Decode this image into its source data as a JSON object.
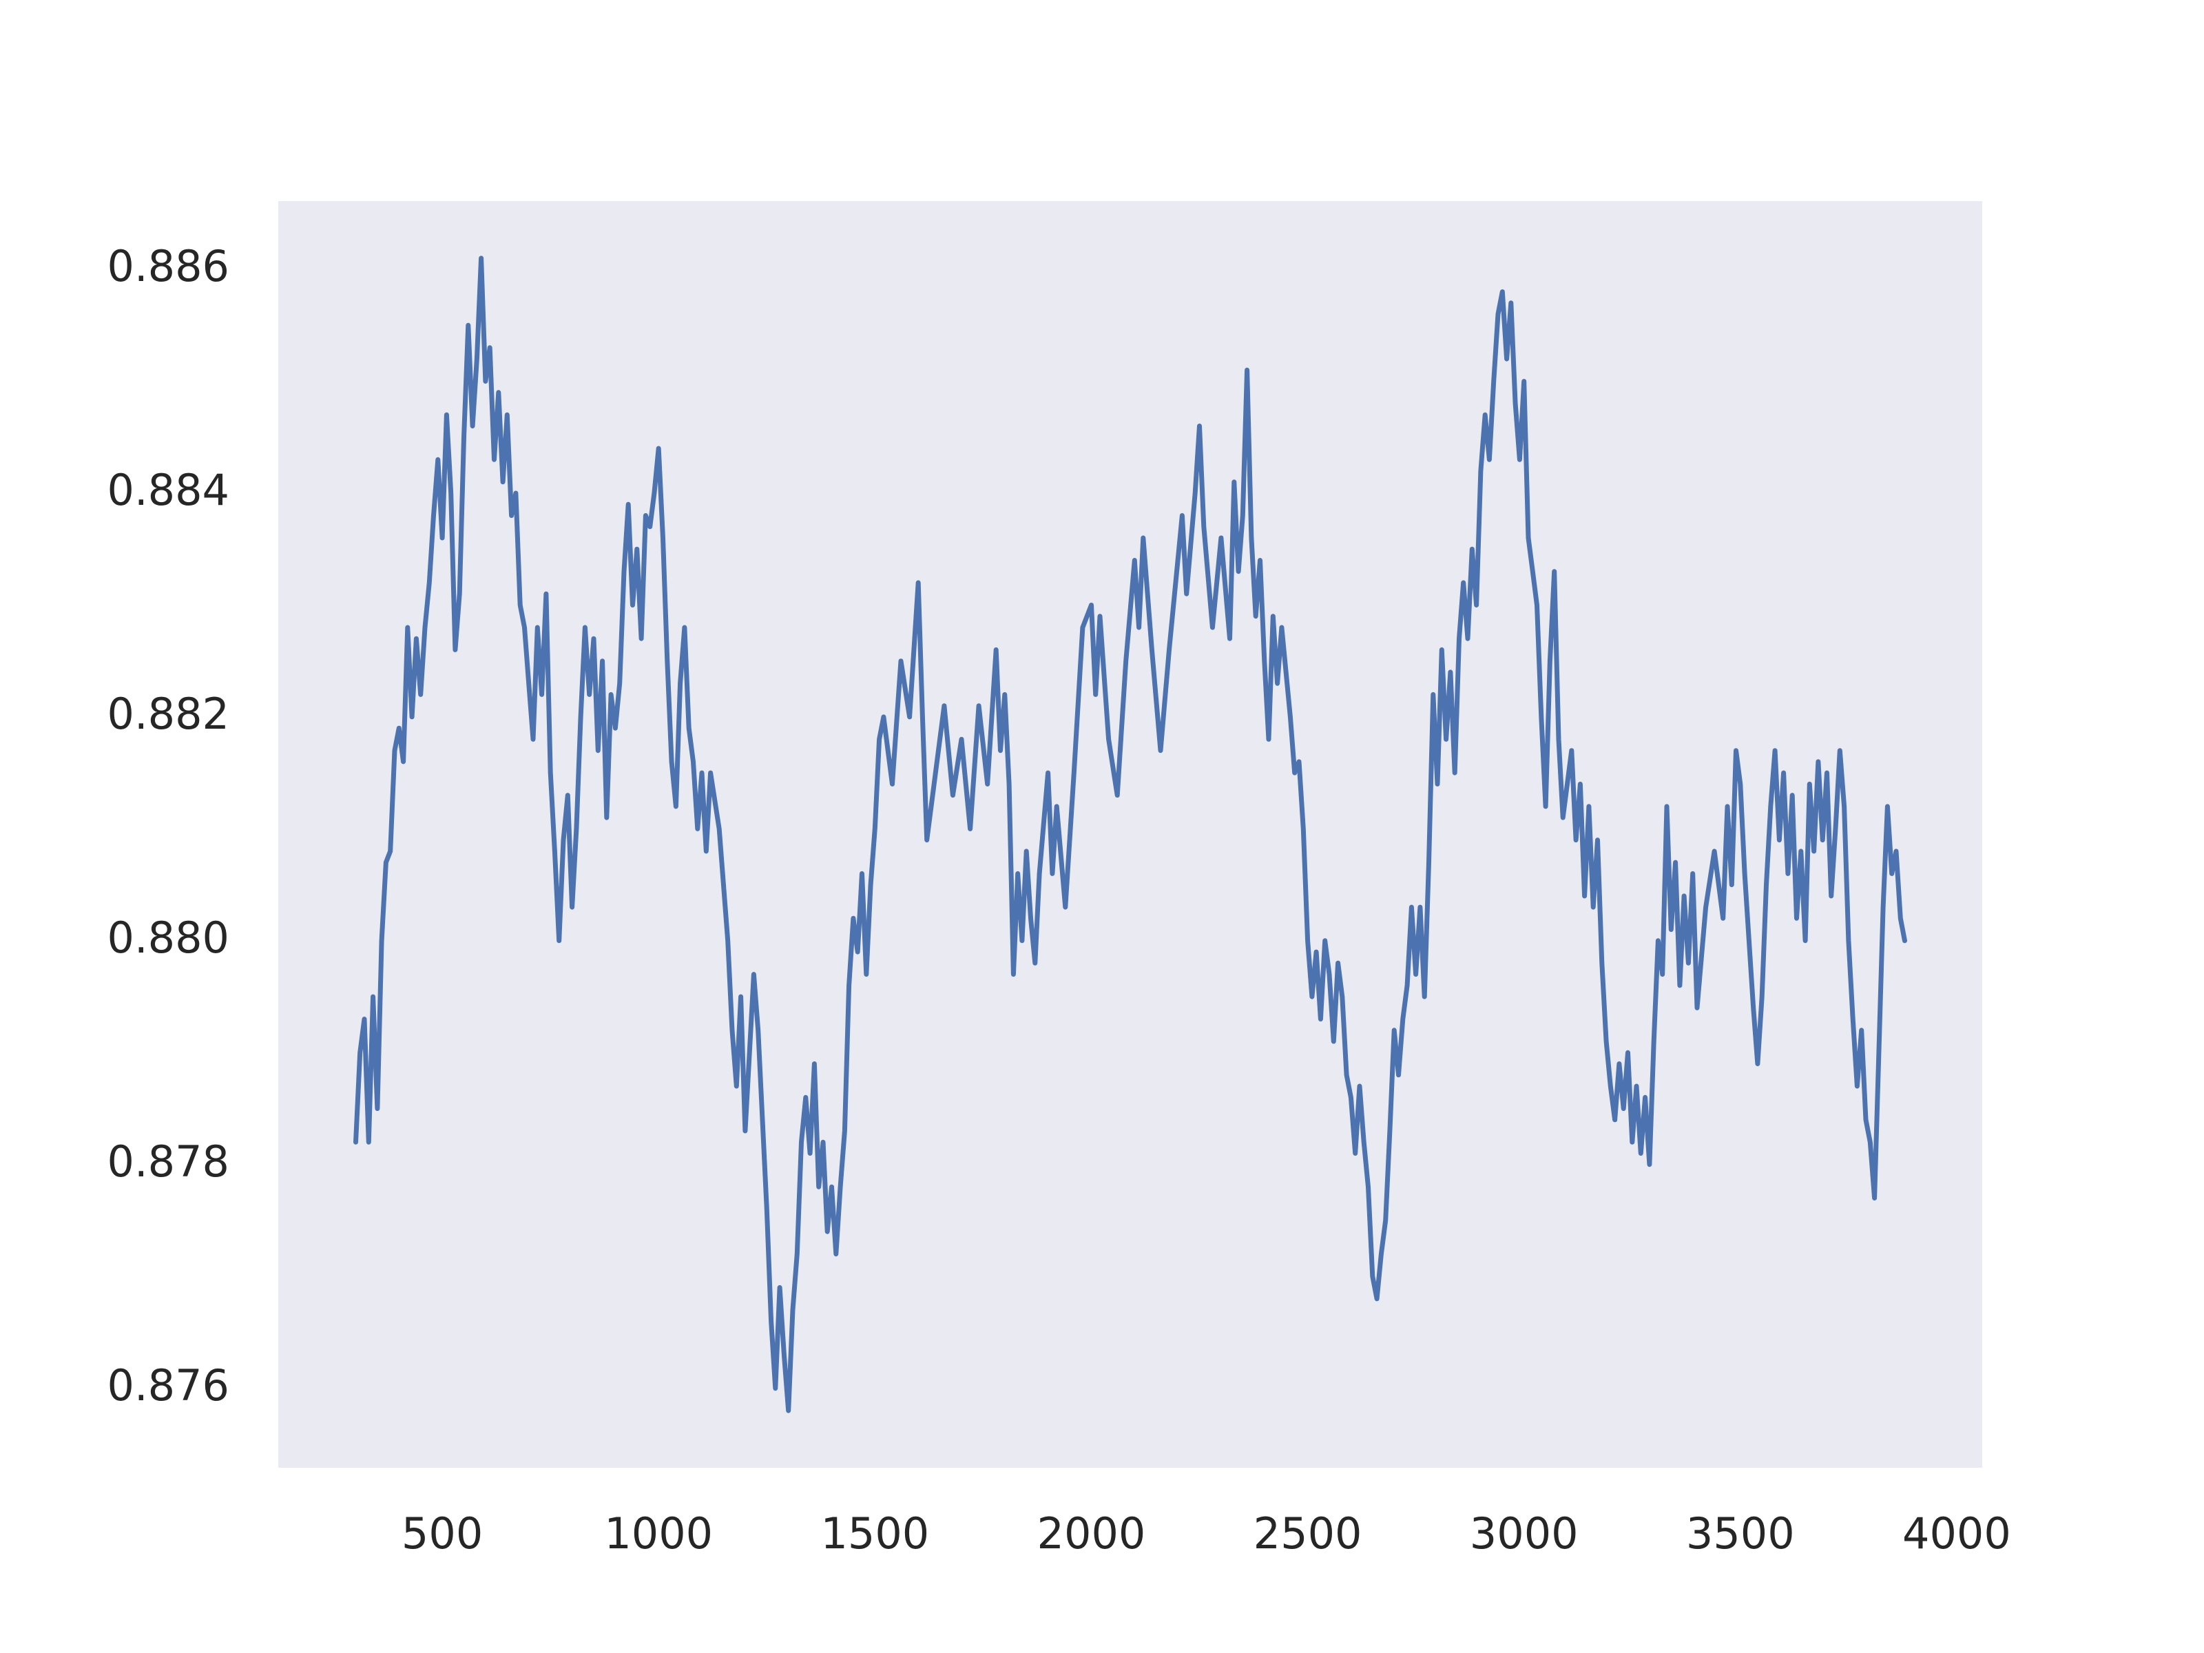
{
  "chart_data": {
    "type": "line",
    "x": [
      300,
      310,
      320,
      330,
      340,
      350,
      360,
      370,
      380,
      390,
      400,
      410,
      420,
      430,
      440,
      450,
      460,
      470,
      480,
      490,
      500,
      510,
      520,
      530,
      540,
      550,
      560,
      570,
      580,
      590,
      600,
      610,
      620,
      630,
      640,
      650,
      660,
      670,
      680,
      690,
      700,
      710,
      720,
      730,
      740,
      750,
      760,
      770,
      780,
      790,
      800,
      810,
      820,
      830,
      840,
      850,
      860,
      870,
      880,
      890,
      900,
      910,
      920,
      930,
      940,
      950,
      960,
      970,
      980,
      990,
      1000,
      1010,
      1020,
      1030,
      1040,
      1050,
      1060,
      1070,
      1080,
      1090,
      1100,
      1110,
      1120,
      1140,
      1160,
      1170,
      1180,
      1190,
      1200,
      1210,
      1220,
      1230,
      1240,
      1250,
      1260,
      1270,
      1280,
      1290,
      1300,
      1310,
      1320,
      1330,
      1340,
      1350,
      1360,
      1370,
      1380,
      1390,
      1400,
      1410,
      1420,
      1430,
      1440,
      1450,
      1460,
      1470,
      1480,
      1490,
      1500,
      1510,
      1520,
      1540,
      1560,
      1580,
      1600,
      1610,
      1620,
      1640,
      1660,
      1680,
      1700,
      1720,
      1740,
      1760,
      1780,
      1790,
      1800,
      1810,
      1820,
      1830,
      1840,
      1850,
      1860,
      1870,
      1880,
      1900,
      1910,
      1920,
      1940,
      1960,
      1980,
      2000,
      2010,
      2020,
      2040,
      2060,
      2080,
      2100,
      2110,
      2120,
      2140,
      2160,
      2180,
      2200,
      2210,
      2220,
      2240,
      2250,
      2260,
      2280,
      2300,
      2320,
      2330,
      2340,
      2350,
      2360,
      2370,
      2380,
      2390,
      2400,
      2410,
      2420,
      2430,
      2440,
      2460,
      2470,
      2480,
      2490,
      2500,
      2510,
      2520,
      2530,
      2540,
      2550,
      2560,
      2570,
      2580,
      2590,
      2600,
      2610,
      2620,
      2630,
      2640,
      2650,
      2660,
      2670,
      2680,
      2690,
      2700,
      2710,
      2720,
      2730,
      2740,
      2750,
      2760,
      2770,
      2780,
      2790,
      2800,
      2810,
      2820,
      2830,
      2840,
      2850,
      2860,
      2870,
      2880,
      2890,
      2900,
      2910,
      2920,
      2930,
      2940,
      2950,
      2960,
      2970,
      2980,
      2990,
      3000,
      3010,
      3020,
      3030,
      3040,
      3050,
      3060,
      3070,
      3080,
      3090,
      3100,
      3110,
      3120,
      3130,
      3140,
      3150,
      3160,
      3170,
      3180,
      3190,
      3200,
      3210,
      3220,
      3230,
      3240,
      3250,
      3260,
      3270,
      3280,
      3290,
      3300,
      3310,
      3320,
      3330,
      3340,
      3350,
      3360,
      3370,
      3380,
      3390,
      3400,
      3420,
      3440,
      3460,
      3470,
      3480,
      3490,
      3500,
      3510,
      3520,
      3530,
      3540,
      3550,
      3560,
      3570,
      3580,
      3590,
      3600,
      3610,
      3620,
      3630,
      3640,
      3650,
      3660,
      3670,
      3680,
      3690,
      3700,
      3710,
      3720,
      3730,
      3740,
      3750,
      3760,
      3770,
      3780,
      3790,
      3800,
      3810,
      3820,
      3830,
      3840,
      3850,
      3860,
      3870,
      3880
    ],
    "series": [
      {
        "color": "#4c72b0",
        "values": [
          0.8782,
          0.879,
          0.8793,
          0.8782,
          0.8795,
          0.8785,
          0.88,
          0.8807,
          0.8808,
          0.8817,
          0.8819,
          0.8816,
          0.8828,
          0.882,
          0.8827,
          0.8822,
          0.8828,
          0.8832,
          0.8838,
          0.8843,
          0.8836,
          0.8847,
          0.884,
          0.8826,
          0.8831,
          0.8845,
          0.8855,
          0.8846,
          0.8852,
          0.8861,
          0.885,
          0.8853,
          0.8843,
          0.8849,
          0.8841,
          0.8847,
          0.8838,
          0.884,
          0.883,
          0.8828,
          0.8823,
          0.8818,
          0.8828,
          0.8822,
          0.8831,
          0.8815,
          0.8808,
          0.88,
          0.8809,
          0.8813,
          0.8803,
          0.881,
          0.882,
          0.8828,
          0.8822,
          0.8827,
          0.8817,
          0.8825,
          0.8811,
          0.8822,
          0.8819,
          0.8823,
          0.8833,
          0.8839,
          0.883,
          0.8835,
          0.8827,
          0.8838,
          0.8837,
          0.884,
          0.8844,
          0.8836,
          0.8825,
          0.8816,
          0.8812,
          0.8823,
          0.8828,
          0.8819,
          0.8816,
          0.881,
          0.8815,
          0.8808,
          0.8815,
          0.881,
          0.88,
          0.8792,
          0.8787,
          0.8795,
          0.8783,
          0.879,
          0.8797,
          0.8792,
          0.8784,
          0.8776,
          0.8766,
          0.876,
          0.8769,
          0.8763,
          0.8758,
          0.8767,
          0.8772,
          0.8782,
          0.8786,
          0.8781,
          0.8789,
          0.8778,
          0.8782,
          0.8774,
          0.8778,
          0.8772,
          0.8778,
          0.8783,
          0.8796,
          0.8802,
          0.8799,
          0.8806,
          0.8797,
          0.8805,
          0.881,
          0.8818,
          0.882,
          0.8814,
          0.8825,
          0.882,
          0.8832,
          0.882,
          0.8809,
          0.8815,
          0.8821,
          0.8813,
          0.8818,
          0.881,
          0.8821,
          0.8814,
          0.8826,
          0.8817,
          0.8822,
          0.8814,
          0.8797,
          0.8806,
          0.88,
          0.8808,
          0.8802,
          0.8798,
          0.8806,
          0.8815,
          0.8806,
          0.8812,
          0.8803,
          0.8815,
          0.8828,
          0.883,
          0.8822,
          0.8829,
          0.8818,
          0.8813,
          0.8825,
          0.8834,
          0.8828,
          0.8836,
          0.8826,
          0.8817,
          0.8826,
          0.8834,
          0.8838,
          0.8831,
          0.884,
          0.8846,
          0.8837,
          0.8828,
          0.8836,
          0.8827,
          0.8841,
          0.8833,
          0.8838,
          0.8851,
          0.8836,
          0.8829,
          0.8834,
          0.8825,
          0.8818,
          0.8829,
          0.8823,
          0.8828,
          0.882,
          0.8815,
          0.8816,
          0.881,
          0.88,
          0.8795,
          0.8799,
          0.8793,
          0.88,
          0.8797,
          0.8791,
          0.8798,
          0.8795,
          0.8788,
          0.8786,
          0.8781,
          0.8787,
          0.8782,
          0.8778,
          0.877,
          0.8768,
          0.8772,
          0.8775,
          0.8783,
          0.8792,
          0.8788,
          0.8793,
          0.8796,
          0.8803,
          0.8797,
          0.8803,
          0.8795,
          0.8807,
          0.8822,
          0.8814,
          0.8826,
          0.8818,
          0.8824,
          0.8815,
          0.8827,
          0.8832,
          0.8827,
          0.8835,
          0.883,
          0.8842,
          0.8847,
          0.8843,
          0.885,
          0.8856,
          0.8858,
          0.8852,
          0.8857,
          0.8848,
          0.8843,
          0.885,
          0.8836,
          0.8833,
          0.883,
          0.882,
          0.8812,
          0.8825,
          0.8833,
          0.8818,
          0.8811,
          0.8814,
          0.8817,
          0.8809,
          0.8814,
          0.8804,
          0.8812,
          0.8803,
          0.8809,
          0.8798,
          0.8791,
          0.8787,
          0.8784,
          0.8789,
          0.8785,
          0.879,
          0.8782,
          0.8787,
          0.8781,
          0.8786,
          0.878,
          0.8791,
          0.88,
          0.8797,
          0.8812,
          0.8801,
          0.8807,
          0.8796,
          0.8804,
          0.8798,
          0.8806,
          0.8794,
          0.8803,
          0.8808,
          0.8802,
          0.8812,
          0.8805,
          0.8817,
          0.8814,
          0.8806,
          0.88,
          0.8794,
          0.8789,
          0.8795,
          0.8805,
          0.8812,
          0.8817,
          0.8809,
          0.8815,
          0.8806,
          0.8813,
          0.8802,
          0.8808,
          0.88,
          0.8814,
          0.8808,
          0.8816,
          0.8809,
          0.8815,
          0.8804,
          0.881,
          0.8817,
          0.8812,
          0.88,
          0.8793,
          0.8787,
          0.8792,
          0.8784,
          0.8782,
          0.8777,
          0.879,
          0.8803,
          0.8812,
          0.8806,
          0.8808,
          0.8802,
          0.88
        ]
      }
    ],
    "xlim": [
      121,
      4059
    ],
    "ylim": [
      0.87529,
      0.88661
    ],
    "xticks": [
      500,
      1000,
      1500,
      2000,
      2500,
      3000,
      3500,
      4000
    ],
    "yticks": [
      0.876,
      0.878,
      {
        "value": 0.88,
        "label": "0.880"
      },
      0.882,
      0.884,
      0.886
    ],
    "grid": false
  }
}
